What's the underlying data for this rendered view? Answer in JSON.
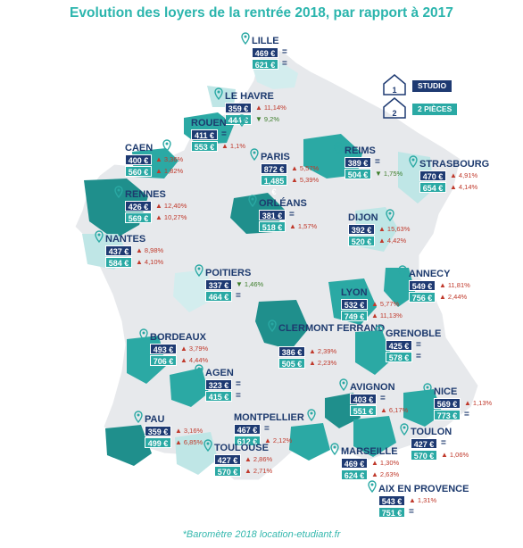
{
  "title": "Evolution des loyers de la rentrée 2018, par rapport à 2017",
  "footer": "*Baromètre 2018 location-etudiant.fr",
  "colors": {
    "studio": "#1e3a72",
    "deux_pieces": "#2aa9a4",
    "increase": "#c0392b",
    "decrease": "#3d7d2a",
    "title": "#2bb5ad"
  },
  "legend": [
    {
      "num": "1",
      "label": "STUDIO"
    },
    {
      "num": "2",
      "label": "2 PIÈCES"
    }
  ],
  "cities": [
    {
      "name": "LILLE",
      "studio": "469 €",
      "studio_change": "=",
      "two": "621 €",
      "two_change": "="
    },
    {
      "name": "LE HAVRE",
      "studio": "359 €",
      "studio_change": "11,14%",
      "two": "444 €",
      "two_change": "9,2%"
    },
    {
      "name": "ROUEN",
      "studio": "411 €",
      "studio_change": "=",
      "two": "553 €",
      "two_change": "1,1%"
    },
    {
      "name": "CAEN",
      "studio": "400 €",
      "studio_change": "3,36%",
      "two": "560 €",
      "two_change": "1,82%"
    },
    {
      "name": "PARIS",
      "studio": "872 €",
      "studio_change": "5,57%",
      "two": "1,485 €",
      "two_change": "5,39%"
    },
    {
      "name": "REIMS",
      "studio": "389 €",
      "studio_change": "=",
      "two": "504 €",
      "two_change": "1,75%"
    },
    {
      "name": "STRASBOURG",
      "studio": "470 €",
      "studio_change": "4,91%",
      "two": "654 €",
      "two_change": "4,14%"
    },
    {
      "name": "RENNES",
      "studio": "426 €",
      "studio_change": "12,40%",
      "two": "569 €",
      "two_change": "10,27%"
    },
    {
      "name": "ORLÉANS",
      "studio": "381 €",
      "studio_change": "=",
      "two": "518 €",
      "two_change": "1,57%"
    },
    {
      "name": "DIJON",
      "studio": "392 €",
      "studio_change": "15,63%",
      "two": "520 €",
      "two_change": "4,42%"
    },
    {
      "name": "NANTES",
      "studio": "437 €",
      "studio_change": "8,98%",
      "two": "584 €",
      "two_change": "4,10%"
    },
    {
      "name": "POITIERS",
      "studio": "337 €",
      "studio_change": "1,46%",
      "two": "464 €",
      "two_change": "="
    },
    {
      "name": "ANNECY",
      "studio": "549 €",
      "studio_change": "11,81%",
      "two": "756 €",
      "two_change": "2,44%"
    },
    {
      "name": "LYON",
      "studio": "532 €",
      "studio_change": "5,77%",
      "two": "749 €",
      "two_change": "11,13%"
    },
    {
      "name": "CLERMONT FERRAND",
      "studio": "386 €",
      "studio_change": "2,39%",
      "two": "505 €",
      "two_change": "2,23%"
    },
    {
      "name": "GRENOBLE",
      "studio": "425 €",
      "studio_change": "=",
      "two": "578 €",
      "two_change": "="
    },
    {
      "name": "BORDEAUX",
      "studio": "493 €",
      "studio_change": "3,79%",
      "two": "706 €",
      "two_change": "4,44%"
    },
    {
      "name": "AGEN",
      "studio": "323 €",
      "studio_change": "=",
      "two": "415 €",
      "two_change": "="
    },
    {
      "name": "AVIGNON",
      "studio": "403 €",
      "studio_change": "=",
      "two": "551 €",
      "two_change": "6,17%"
    },
    {
      "name": "NICE",
      "studio": "569 €",
      "studio_change": "1,13%",
      "two": "773 €",
      "two_change": "="
    },
    {
      "name": "PAU",
      "studio": "359 €",
      "studio_change": "3,16%",
      "two": "499 €",
      "two_change": "6,85%"
    },
    {
      "name": "MONTPELLIER",
      "studio": "467 €",
      "studio_change": "=",
      "two": "612 €",
      "two_change": "2,12%"
    },
    {
      "name": "TOULON",
      "studio": "427 €",
      "studio_change": "=",
      "two": "570 €",
      "two_change": "1,06%"
    },
    {
      "name": "TOULOUSE",
      "studio": "427 €",
      "studio_change": "2,86%",
      "two": "570 €",
      "two_change": "2,71%"
    },
    {
      "name": "MARSEILLE",
      "studio": "469 €",
      "studio_change": "1,30%",
      "two": "624 €",
      "two_change": "2,63%"
    },
    {
      "name": "AIX EN PROVENCE",
      "studio": "543 €",
      "studio_change": "1,31%",
      "two": "751 €",
      "two_change": "="
    }
  ]
}
